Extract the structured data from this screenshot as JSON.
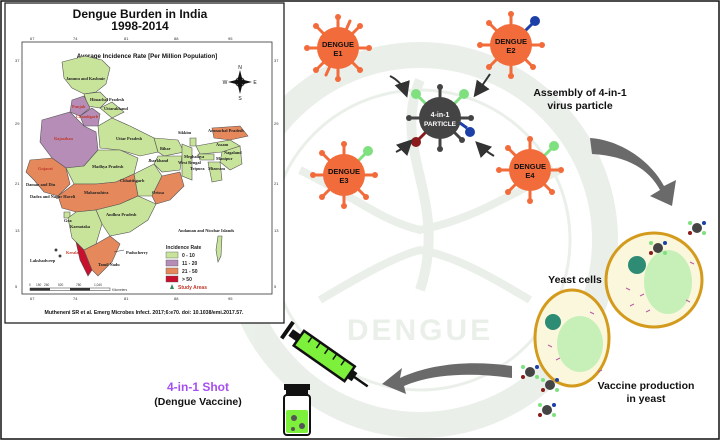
{
  "map": {
    "title_line1": "Dengue Burden in India",
    "title_line2": "1998-2014",
    "subtitle": "Average Incidence Rate [Per Million Population]",
    "lon_ticks": [
      "67",
      "74",
      "81",
      "88",
      "95"
    ],
    "lat_ticks": [
      "37",
      "29",
      "21",
      "13",
      "5"
    ],
    "compass": {
      "n": "N",
      "s": "S",
      "e": "E",
      "w": "W"
    },
    "regions": [
      {
        "label": "Jammu and Kashmir",
        "color": "#6b8e23"
      },
      {
        "label": "Himachal Pradesh",
        "color": "#6b8e23"
      },
      {
        "label": "Punjab",
        "color": "#c0392b"
      },
      {
        "label": "Uttarakhand",
        "color": "#6b8e23"
      },
      {
        "label": "Chandigarh",
        "color": "#c0392b"
      },
      {
        "label": "Rajasthan",
        "color": "#c0392b"
      },
      {
        "label": "Uttar Pradesh",
        "color": "#6b8e23"
      },
      {
        "label": "Gujarat",
        "color": "#c0392b"
      },
      {
        "label": "Madhya Pradesh",
        "color": "#6b8e23"
      },
      {
        "label": "Bihar",
        "color": "#6b8e23"
      },
      {
        "label": "Sikkim",
        "color": "#6b8e23"
      },
      {
        "label": "Arunachal Pradesh",
        "color": "#6b8e23"
      },
      {
        "label": "Meghalaya",
        "color": "#6b8e23"
      },
      {
        "label": "Assam",
        "color": "#6b8e23"
      },
      {
        "label": "Nagaland",
        "color": "#6b8e23"
      },
      {
        "label": "Manipur",
        "color": "#6b8e23"
      },
      {
        "label": "West Bengal",
        "color": "#6b8e23"
      },
      {
        "label": "Tripura",
        "color": "#6b8e23"
      },
      {
        "label": "Mizoram",
        "color": "#6b8e23"
      },
      {
        "label": "Jharkhand",
        "color": "#6b8e23"
      },
      {
        "label": "Chhattisgarh",
        "color": "#6b8e23"
      },
      {
        "label": "Orissa",
        "color": "#6b8e23"
      },
      {
        "label": "Daman and Diu",
        "color": "#6b8e23"
      },
      {
        "label": "Dadra and Nagar Haveli",
        "color": "#6b8e23"
      },
      {
        "label": "Maharashtra",
        "color": "#6b8e23"
      },
      {
        "label": "Goa",
        "color": "#6b8e23"
      },
      {
        "label": "Andhra Pradesh",
        "color": "#6b8e23"
      },
      {
        "label": "Karnataka",
        "color": "#6b8e23"
      },
      {
        "label": "Kerala",
        "color": "#c0392b"
      },
      {
        "label": "Puducherry",
        "color": "#6b8e23"
      },
      {
        "label": "Tamil Nadu",
        "color": "#6b8e23"
      },
      {
        "label": "Andaman and Nicobar Islands",
        "color": "#6b8e23"
      },
      {
        "label": "Lakshadweep",
        "color": "#333333"
      }
    ],
    "legend": {
      "title": "Incidence Rate",
      "items": [
        {
          "label": "0 - 10",
          "color": "#c8e39a"
        },
        {
          "label": "11 - 20",
          "color": "#b58db6"
        },
        {
          "label": "21 - 50",
          "color": "#e5885c"
        },
        {
          "label": "> 50",
          "color": "#c8102e"
        }
      ],
      "study_label": "Study Areas"
    },
    "scale_values": [
      "0",
      "150",
      "260",
      "520",
      "780",
      "1,040"
    ],
    "scale_unit": "Kilometers",
    "citation": "Mutheneni SR et al. Emerg Microbes Infect. 2017;6:e70. doi: 10.1038/emi.2017.57."
  },
  "diagram": {
    "viruses": [
      {
        "line1": "DENGUE",
        "line2": "E1",
        "knob": ""
      },
      {
        "line1": "DENGUE",
        "line2": "E2",
        "knob": "#1c3fa8"
      },
      {
        "line1": "DENGUE",
        "line2": "E3",
        "knob": "#7fe07f"
      },
      {
        "line1": "DENGUE",
        "line2": "E4",
        "knob": "#7fe07f"
      }
    ],
    "particle": {
      "line1": "4-in-1",
      "line2": "PARTICLE"
    },
    "assembly_label_1": "Assembly of 4-in-1",
    "assembly_label_2": "virus particle",
    "yeast_label": "Yeast cells",
    "production_label_1": "Vaccine production",
    "production_label_2": "in yeast",
    "shot_label": "4-in-1 Shot",
    "vaccine_label": "(Dengue Vaccine)",
    "watermark": "DENGUE",
    "colors": {
      "virus": "#f26b3a",
      "particle": "#444444",
      "red_knob": "#8b1a1a",
      "blue_knob": "#1c3fa8",
      "green_knob": "#7fe07f",
      "shot": "#a64ff0",
      "arrow": "#555555",
      "yeast_border": "#d49a1c",
      "yeast_fill": "#fbf7dd",
      "vacuole": "#c7f0b8",
      "nucleus": "#2e8b74",
      "syringe": "#7cf03a"
    }
  }
}
